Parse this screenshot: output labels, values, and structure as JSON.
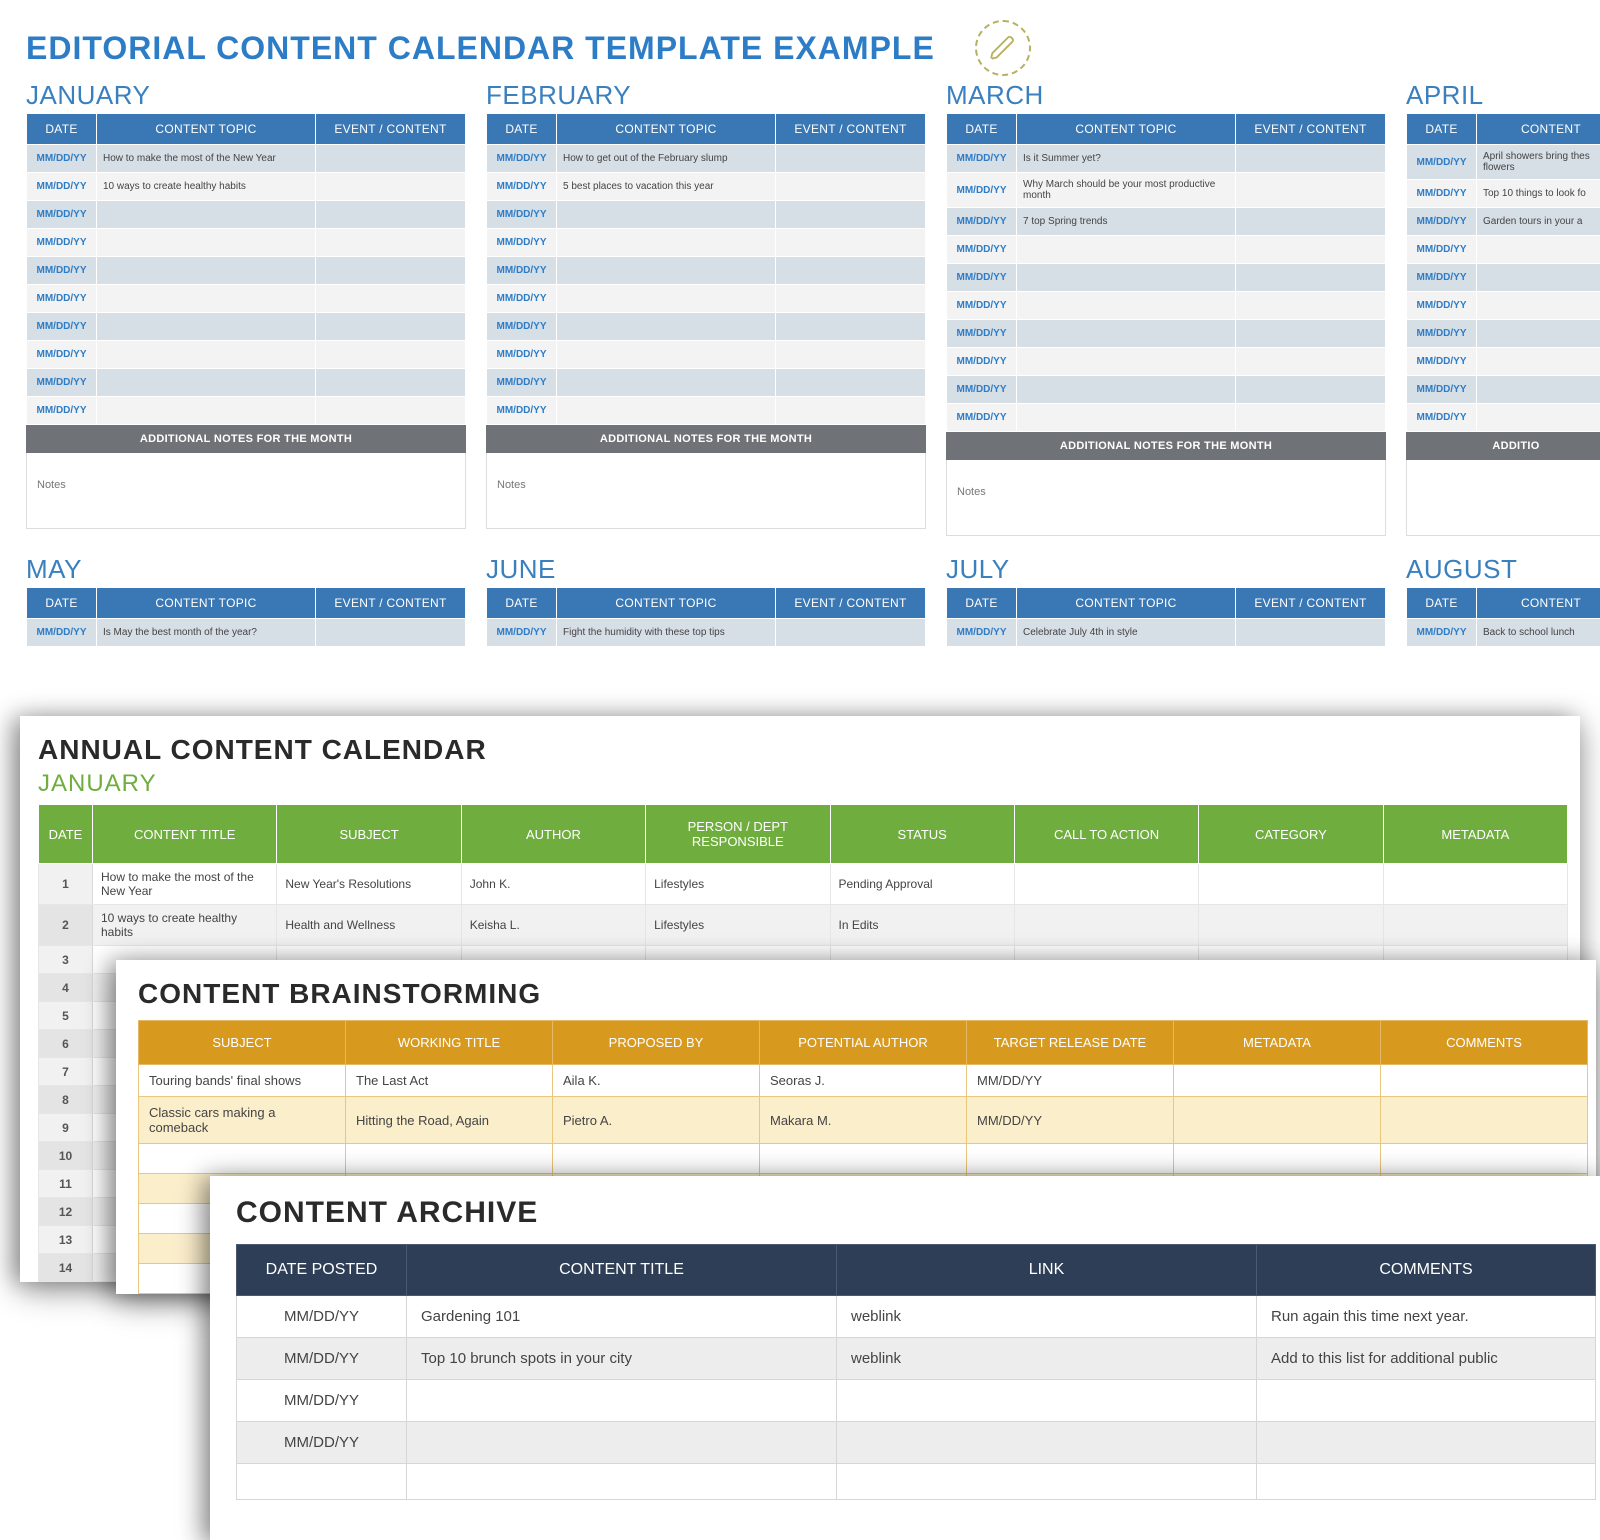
{
  "colors": {
    "blue_header": "#3a78b5",
    "blue_text": "#2d7cc6",
    "blue_label": "#3a7fbe",
    "row_alt_blue_a": "#d6dee6",
    "row_alt_blue_b": "#f3f3f4",
    "notes_header": "#6f7276",
    "green_header": "#6fae3e",
    "gold_header": "#d89a1e",
    "gold_row_alt": "#fbeecb",
    "navy_header": "#2e3e56",
    "background": "#ffffff"
  },
  "main_title": "EDITORIAL CONTENT CALENDAR TEMPLATE EXAMPLE",
  "month_headers": {
    "date": "DATE",
    "topic": "CONTENT TOPIC",
    "event": "EVENT / CONTENT",
    "content_short": "CONTENT"
  },
  "date_placeholder": "MM/DD/YY",
  "additional_notes_label": "ADDITIONAL NOTES FOR THE MONTH",
  "additional_notes_label_cut": "ADDITIO",
  "notes_placeholder": "Notes",
  "months_row1": [
    {
      "name": "JANUARY",
      "topics": [
        "How to make the most of the New Year",
        "10 ways to create healthy habits",
        "",
        "",
        "",
        "",
        "",
        "",
        "",
        ""
      ]
    },
    {
      "name": "FEBRUARY",
      "topics": [
        "How to get out of the February slump",
        "5 best places to vacation this year",
        "",
        "",
        "",
        "",
        "",
        "",
        "",
        ""
      ]
    },
    {
      "name": "MARCH",
      "topics": [
        "Is it Summer yet?",
        "Why March should be your most productive month",
        "7 top Spring trends",
        "",
        "",
        "",
        "",
        "",
        "",
        ""
      ]
    },
    {
      "name": "APRIL",
      "narrow": true,
      "topics": [
        "April showers bring thes flowers",
        "Top 10 things to look fo",
        "Garden tours in your a",
        "",
        "",
        "",
        "",
        "",
        "",
        ""
      ]
    }
  ],
  "months_row2": [
    {
      "name": "MAY",
      "topics": [
        "Is May the best month of the year?"
      ]
    },
    {
      "name": "JUNE",
      "topics": [
        "Fight the humidity with these top tips"
      ]
    },
    {
      "name": "JULY",
      "topics": [
        "Celebrate July 4th in style"
      ]
    },
    {
      "name": "AUGUST",
      "narrow": true,
      "topics": [
        "Back to school lunch"
      ]
    }
  ],
  "annual": {
    "title": "ANNUAL CONTENT CALENDAR",
    "subtitle": "JANUARY",
    "headers": [
      "DATE",
      "CONTENT TITLE",
      "SUBJECT",
      "AUTHOR",
      "PERSON / DEPT RESPONSIBLE",
      "STATUS",
      "CALL TO ACTION",
      "CATEGORY",
      "METADATA"
    ],
    "rows": [
      {
        "n": "1",
        "title": "How to make the most of the New Year",
        "subject": "New Year's Resolutions",
        "author": "John K.",
        "responsible": "Lifestyles",
        "status": "Pending Approval"
      },
      {
        "n": "2",
        "title": "10 ways to create healthy habits",
        "subject": "Health and Wellness",
        "author": "Keisha L.",
        "responsible": "Lifestyles",
        "status": "In Edits"
      },
      {
        "n": "3"
      },
      {
        "n": "4"
      },
      {
        "n": "5"
      },
      {
        "n": "6"
      },
      {
        "n": "7"
      },
      {
        "n": "8"
      },
      {
        "n": "9"
      },
      {
        "n": "10"
      },
      {
        "n": "11"
      },
      {
        "n": "12"
      },
      {
        "n": "13"
      },
      {
        "n": "14"
      }
    ]
  },
  "brainstorm": {
    "title": "CONTENT BRAINSTORMING",
    "headers": [
      "SUBJECT",
      "WORKING TITLE",
      "PROPOSED BY",
      "POTENTIAL AUTHOR",
      "TARGET RELEASE DATE",
      "METADATA",
      "COMMENTS"
    ],
    "rows": [
      {
        "subject": "Touring bands' final shows",
        "working": "The Last Act",
        "proposed": "Aila K.",
        "author": "Seoras J.",
        "date": "MM/DD/YY"
      },
      {
        "subject": "Classic cars making a comeback",
        "working": "Hitting the Road, Again",
        "proposed": "Pietro A.",
        "author": "Makara M.",
        "date": "MM/DD/YY"
      },
      {},
      {},
      {},
      {},
      {}
    ]
  },
  "archive": {
    "title": "CONTENT ARCHIVE",
    "headers": [
      "DATE POSTED",
      "CONTENT TITLE",
      "LINK",
      "COMMENTS"
    ],
    "rows": [
      {
        "date": "MM/DD/YY",
        "title": "Gardening 101",
        "link": "weblink",
        "comments": "Run again this time next year."
      },
      {
        "date": "MM/DD/YY",
        "title": "Top 10 brunch spots in your city",
        "link": "weblink",
        "comments": "Add to this list for additional public"
      },
      {
        "date": "MM/DD/YY"
      },
      {
        "date": "MM/DD/YY"
      },
      {
        "date": ""
      }
    ]
  }
}
